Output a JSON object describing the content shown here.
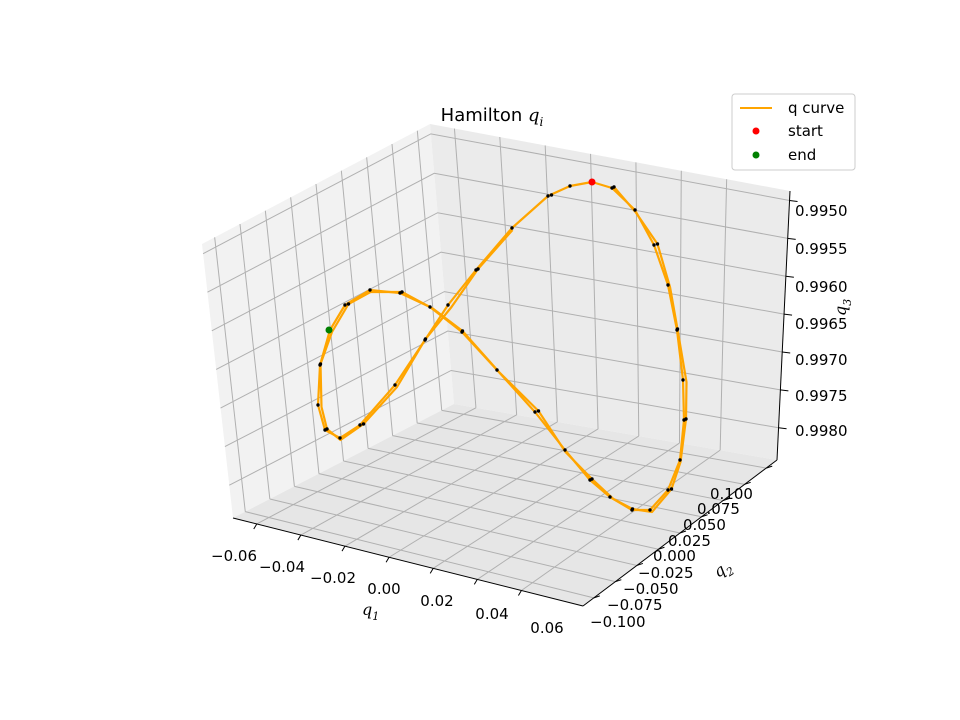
{
  "chart_data": {
    "type": "line3d",
    "title": "Hamilton q_i",
    "title_text": "Hamilton ",
    "title_symbol": "q",
    "title_sub": "i",
    "xlabel": "q",
    "xlabel_sub": "1",
    "ylabel": "q",
    "ylabel_sub": "2",
    "zlabel": "q",
    "zlabel_sub": "3",
    "x_ticks": [
      "−0.06",
      "−0.04",
      "−0.02",
      "0.00",
      "0.02",
      "0.04",
      "0.06"
    ],
    "y_ticks": [
      "−0.100",
      "−0.075",
      "−0.050",
      "−0.025",
      "0.000",
      "0.025",
      "0.050",
      "0.075",
      "0.100"
    ],
    "z_ticks": [
      "0.9950",
      "0.9955",
      "0.9960",
      "0.9965",
      "0.9970",
      "0.9975",
      "0.9980"
    ],
    "xlim": [
      -0.065,
      0.065
    ],
    "ylim": [
      -0.11,
      0.11
    ],
    "zlim": [
      0.99822,
      0.99488
    ],
    "grid": true,
    "legend_position": "top-right",
    "legend": [
      "q curve",
      "start",
      "end"
    ],
    "colors": {
      "curve": "#ffa500",
      "start": "#ff0000",
      "end": "#008000",
      "samples": "#000000"
    },
    "curve_model": {
      "x": "0.055*sin(2t)",
      "y": "0.1*sin(t)",
      "z": "0.995 + 0.0048*(cos(2t)^2)... approx; points sampled below",
      "loops": 2
    },
    "series": [
      {
        "name": "q curve",
        "points": [
          [
            0.0,
            0.1,
            0.9953
          ],
          [
            0.011,
            0.0995,
            0.9954
          ],
          [
            0.022,
            0.098,
            0.9955
          ],
          [
            0.032,
            0.0955,
            0.9957
          ],
          [
            0.041,
            0.092,
            0.9959
          ],
          [
            0.048,
            0.0875,
            0.9961
          ],
          [
            0.053,
            0.082,
            0.9963
          ],
          [
            0.055,
            0.0755,
            0.9966
          ],
          [
            0.055,
            0.068,
            0.9969
          ],
          [
            0.052,
            0.0595,
            0.9972
          ],
          [
            0.047,
            0.05,
            0.9975
          ],
          [
            0.04,
            0.04,
            0.9977
          ],
          [
            0.031,
            0.029,
            0.9979
          ],
          [
            0.021,
            0.018,
            0.998
          ],
          [
            0.01,
            0.006,
            0.998
          ],
          [
            0.0,
            -0.006,
            0.998
          ],
          [
            -0.01,
            -0.018,
            0.9979
          ],
          [
            -0.021,
            -0.029,
            0.9977
          ],
          [
            -0.031,
            -0.04,
            0.9974
          ],
          [
            -0.04,
            -0.05,
            0.9972
          ],
          [
            -0.047,
            -0.0595,
            0.9969
          ],
          [
            -0.052,
            -0.068,
            0.9966
          ],
          [
            -0.055,
            -0.0755,
            0.9964
          ],
          [
            -0.055,
            -0.082,
            0.9962
          ],
          [
            -0.053,
            -0.0875,
            0.9961
          ],
          [
            -0.048,
            -0.092,
            0.996
          ],
          [
            -0.041,
            -0.0955,
            0.996
          ],
          [
            -0.032,
            -0.098,
            0.996
          ],
          [
            -0.022,
            -0.0995,
            0.9961
          ],
          [
            -0.011,
            -0.1,
            0.9963
          ],
          [
            0.0,
            -0.1,
            0.9965
          ]
        ]
      }
    ],
    "start_point": [
      0.0,
      0.1,
      0.9953
    ],
    "end_point": [
      -0.055,
      -0.06,
      0.9962
    ]
  }
}
